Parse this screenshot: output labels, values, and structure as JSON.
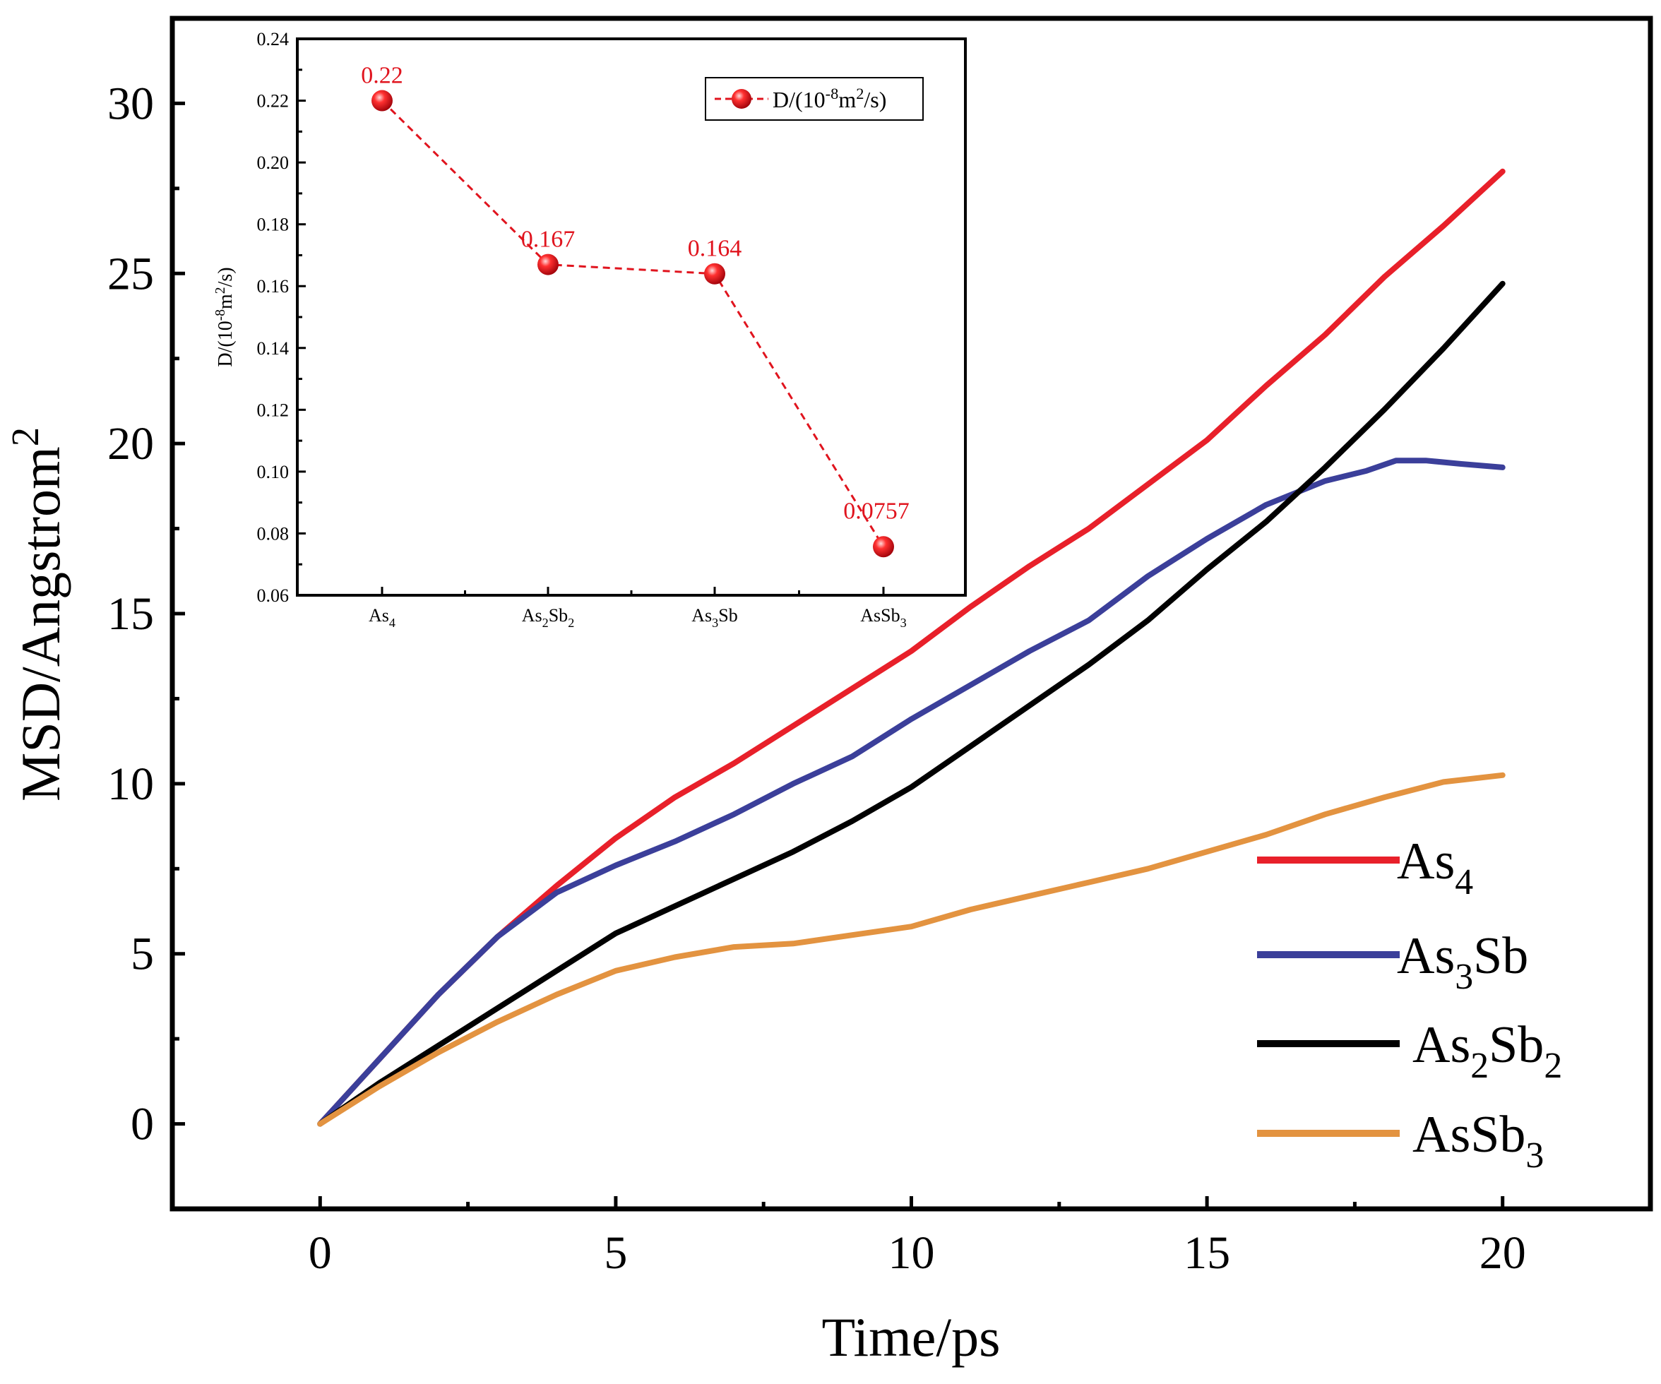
{
  "chart_data": [
    {
      "type": "line",
      "xlabel": "Time/ps",
      "ylabel": "MSD/Angstrom",
      "ylabel_sup": "2",
      "xlim": [
        -2.5,
        22.5
      ],
      "ylim": [
        -2.5,
        32.5
      ],
      "xticks": [
        "0",
        "5",
        "10",
        "15",
        "20"
      ],
      "yticks": [
        "0",
        "5",
        "10",
        "15",
        "20",
        "25",
        "30"
      ],
      "series": [
        {
          "name": "As4",
          "label_main": "As",
          "label_sub": "4",
          "label_tail": "",
          "color": "#e8202a",
          "x": [
            0,
            1,
            2,
            3,
            4,
            5,
            6,
            7,
            8,
            9,
            10,
            11,
            12,
            13,
            14,
            15,
            16,
            17,
            18,
            19,
            20
          ],
          "y": [
            0,
            1.9,
            3.8,
            5.5,
            7.0,
            8.4,
            9.6,
            10.6,
            11.7,
            12.8,
            13.9,
            15.2,
            16.4,
            17.5,
            18.8,
            20.1,
            21.7,
            23.2,
            24.9,
            26.4,
            28.0
          ]
        },
        {
          "name": "As3Sb",
          "label_main": "As",
          "label_sub": "3",
          "label_tail": "Sb",
          "color": "#3b3f9a",
          "x": [
            0,
            1,
            2,
            3,
            4,
            5,
            6,
            7,
            8,
            9,
            10,
            11,
            12,
            13,
            14,
            15,
            16,
            17,
            17.7,
            18.2,
            18.7,
            19.3,
            20
          ],
          "y": [
            0,
            1.9,
            3.8,
            5.5,
            6.8,
            7.6,
            8.3,
            9.1,
            10.0,
            10.8,
            11.9,
            12.9,
            13.9,
            14.8,
            16.1,
            17.2,
            18.2,
            18.9,
            19.2,
            19.5,
            19.5,
            19.4,
            19.3
          ]
        },
        {
          "name": "As2Sb2",
          "label_main": "As",
          "label_sub": "2",
          "label_tail": "Sb",
          "label_sub2": "2",
          "color": "#000000",
          "x": [
            0,
            1,
            2,
            3,
            4,
            5,
            6,
            7,
            8,
            9,
            10,
            11,
            12,
            13,
            14,
            15,
            16,
            17,
            18,
            19,
            20
          ],
          "y": [
            0,
            1.2,
            2.3,
            3.4,
            4.5,
            5.6,
            6.4,
            7.2,
            8.0,
            8.9,
            9.9,
            11.1,
            12.3,
            13.5,
            14.8,
            16.3,
            17.7,
            19.3,
            21.0,
            22.8,
            24.7
          ]
        },
        {
          "name": "AsSb3",
          "label_main": "AsSb",
          "label_sub": "3",
          "label_tail": "",
          "color": "#e39340",
          "x": [
            0,
            1,
            2,
            3,
            4,
            5,
            6,
            7,
            8,
            9,
            10,
            11,
            12,
            13,
            14,
            15,
            16,
            17,
            18,
            19,
            20
          ],
          "y": [
            0,
            1.1,
            2.1,
            3.0,
            3.8,
            4.5,
            4.9,
            5.2,
            5.3,
            5.55,
            5.8,
            6.3,
            6.7,
            7.1,
            7.5,
            8.0,
            8.5,
            9.1,
            9.6,
            10.05,
            10.25
          ]
        }
      ]
    },
    {
      "type": "line",
      "inset": true,
      "categories": [
        "As4",
        "As2Sb2",
        "As3Sb",
        "AsSb3"
      ],
      "category_labels": [
        {
          "main": "As",
          "sub": "4",
          "tail": "",
          "sub2": ""
        },
        {
          "main": "As",
          "sub": "2",
          "tail": "Sb",
          "sub2": "2"
        },
        {
          "main": "As",
          "sub": "3",
          "tail": "Sb",
          "sub2": ""
        },
        {
          "main": "AsSb",
          "sub": "3",
          "tail": "",
          "sub2": ""
        }
      ],
      "values": [
        0.22,
        0.167,
        0.164,
        0.0757
      ],
      "value_labels": [
        "0.22",
        "0.167",
        "0.164",
        "0.0757"
      ],
      "ylim": [
        0.06,
        0.24
      ],
      "yticks": [
        "0.06",
        "0.08",
        "0.10",
        "0.12",
        "0.14",
        "0.16",
        "0.18",
        "0.20",
        "0.22",
        "0.24"
      ],
      "ylabel": "D/(10-8m2/s)",
      "ylabel_parts": {
        "a": "D/(10",
        "sup1": "-8",
        "b": "m",
        "sup2": "2",
        "c": "/s)"
      },
      "legend": "D/(10-8m2/s)",
      "legend_parts": {
        "a": "D/(10",
        "sup1": "-8",
        "b": "m",
        "sup2": "2",
        "c": "/s)"
      },
      "color": "#e0141e"
    }
  ]
}
